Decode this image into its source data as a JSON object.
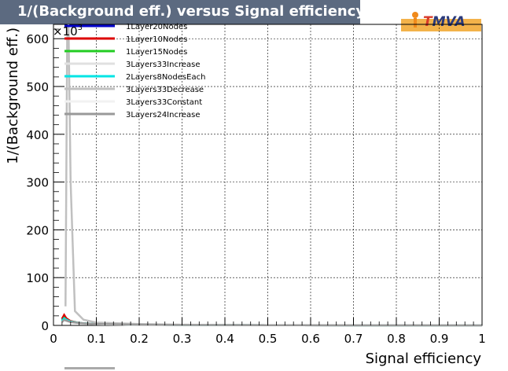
{
  "title": "1/(Background eff.) versus Signal efficiency",
  "logo": {
    "first_letter": "T",
    "rest": "MVA"
  },
  "colors": {
    "title_bg": "#5c6a80",
    "grid": "#000000",
    "frame": "#000000"
  },
  "chart_data": {
    "type": "line",
    "title": "1/(Background eff.) versus Signal efficiency",
    "xlabel": "Signal efficiency",
    "ylabel": "1/(Background eff.)",
    "y_exponent_label": "×10",
    "y_exponent_power": "3",
    "xlim": [
      0,
      1
    ],
    "ylim": [
      0,
      630
    ],
    "x_ticks": [
      "0",
      "0.1",
      "0.2",
      "0.3",
      "0.4",
      "0.5",
      "0.6",
      "0.7",
      "0.8",
      "0.9",
      "1"
    ],
    "y_ticks": [
      "0",
      "100",
      "200",
      "300",
      "400",
      "500",
      "600"
    ],
    "grid": true,
    "legend_position": "top-left",
    "series": [
      {
        "name": "1Layer20Nodes",
        "color": "#0000cc",
        "x": [
          0.02,
          0.025,
          0.03,
          0.04,
          0.06,
          0.1,
          0.2,
          0.3,
          0.5,
          0.7,
          1.0
        ],
        "values": [
          12,
          18,
          12,
          8,
          5,
          3,
          1.5,
          1,
          0.5,
          0.2,
          0
        ]
      },
      {
        "name": "1Layer10Nodes",
        "color": "#dd0000",
        "x": [
          0.02,
          0.025,
          0.03,
          0.04,
          0.06,
          0.1,
          0.2,
          0.3,
          0.5,
          0.7,
          1.0
        ],
        "values": [
          14,
          22,
          15,
          9,
          5,
          3,
          1.5,
          1,
          0.5,
          0.2,
          0
        ]
      },
      {
        "name": "1Layer15Nodes",
        "color": "#22cc22",
        "x": [
          0.02,
          0.025,
          0.03,
          0.04,
          0.06,
          0.1,
          0.2,
          0.3,
          0.5,
          0.7,
          1.0
        ],
        "values": [
          10,
          16,
          12,
          8,
          5,
          3,
          1.5,
          1,
          0.5,
          0.2,
          0
        ]
      },
      {
        "name": "3Layers33Increase",
        "color": "#e0e0e0",
        "x": [
          0.02,
          0.025,
          0.03,
          0.04,
          0.06,
          0.1,
          0.2,
          0.3,
          0.5,
          0.7,
          1.0
        ],
        "values": [
          8,
          14,
          11,
          7,
          5,
          3,
          1.5,
          1,
          0.5,
          0.2,
          0
        ]
      },
      {
        "name": "2Layers8NodesEach",
        "color": "#00e5e5",
        "x": [
          0.02,
          0.025,
          0.03,
          0.04,
          0.06,
          0.1,
          0.2,
          0.3,
          0.5,
          0.7,
          1.0
        ],
        "values": [
          9,
          15,
          12,
          8,
          5,
          3,
          1.5,
          1,
          0.5,
          0.2,
          0
        ]
      },
      {
        "name": "3Layers33Decrease",
        "color": "#c0c0c0",
        "x": [
          0.028,
          0.03,
          0.032,
          0.035,
          0.04,
          0.05,
          0.07,
          0.1,
          0.2,
          0.3,
          0.5,
          0.7,
          1.0
        ],
        "values": [
          40,
          300,
          600,
          630,
          300,
          30,
          12,
          6,
          3,
          1.5,
          0.5,
          0.2,
          0
        ]
      },
      {
        "name": "3Layers33Constant",
        "color": "#f2f2f2",
        "x": [
          0.02,
          0.025,
          0.03,
          0.04,
          0.06,
          0.1,
          0.2,
          0.3,
          0.5,
          0.7,
          1.0
        ],
        "values": [
          6,
          10,
          9,
          6,
          4,
          2.5,
          1.2,
          0.8,
          0.4,
          0.2,
          0
        ]
      },
      {
        "name": "3Layers24Increase",
        "color": "#999999",
        "x": [
          0.02,
          0.025,
          0.03,
          0.04,
          0.06,
          0.1,
          0.2,
          0.3,
          0.5,
          0.7,
          1.0
        ],
        "values": [
          7,
          12,
          10,
          7,
          5,
          3,
          1.5,
          1,
          0.5,
          0.2,
          0
        ]
      }
    ]
  }
}
